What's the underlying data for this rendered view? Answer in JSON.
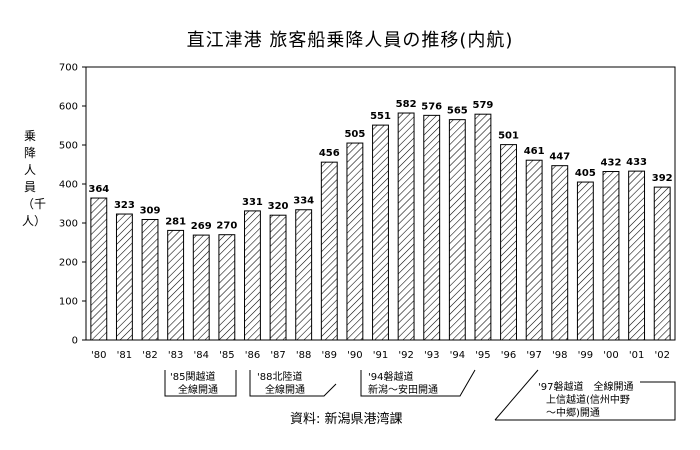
{
  "chart_data": {
    "type": "bar",
    "title": "直江津港 旅客船乗降人員の推移(内航)",
    "ylabel": "乗降人員（千人）",
    "ylim": [
      0,
      700
    ],
    "yticks": [
      0,
      100,
      200,
      300,
      400,
      500,
      600,
      700
    ],
    "categories": [
      "'80",
      "'81",
      "'82",
      "'83",
      "'84",
      "'85",
      "'86",
      "'87",
      "'88",
      "'89",
      "'90",
      "'91",
      "'92",
      "'93",
      "'94",
      "'95",
      "'96",
      "'97",
      "'98",
      "'99",
      "'00",
      "'01",
      "'02"
    ],
    "values": [
      364,
      323,
      309,
      281,
      269,
      270,
      331,
      320,
      334,
      456,
      505,
      551,
      582,
      576,
      565,
      579,
      501,
      461,
      447,
      405,
      432,
      433,
      392
    ],
    "bar_pattern": "diagonal-hatch",
    "grid": false,
    "annotations": [
      {
        "lines": [
          "'85関越道",
          "全線開通"
        ]
      },
      {
        "lines": [
          "'88北陸道",
          "全線開通"
        ]
      },
      {
        "lines": [
          "'94磐越道",
          "新潟～安田開通"
        ]
      },
      {
        "lines": [
          "'97磐越道　全線開通",
          "上信越道(信州中野",
          "～中郷)開通"
        ]
      }
    ],
    "source": "資料: 新潟県港湾課"
  }
}
